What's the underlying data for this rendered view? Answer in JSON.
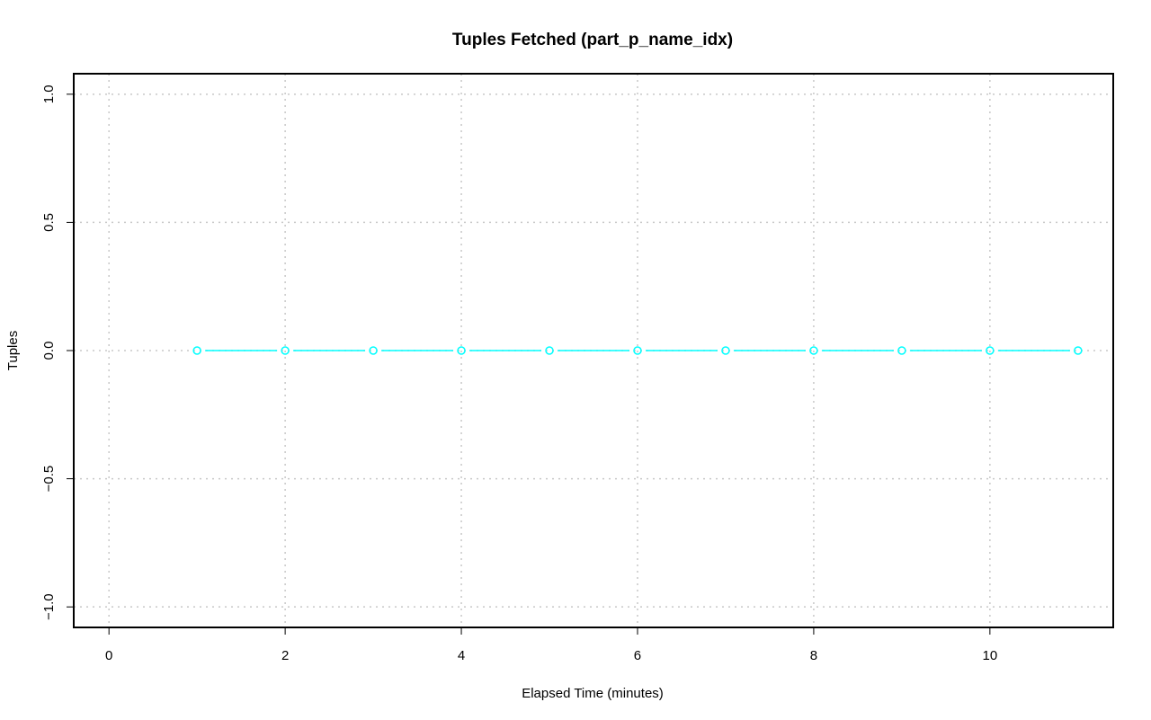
{
  "chart_data": {
    "type": "line",
    "title": "Tuples Fetched (part_p_name_idx)",
    "xlabel": "Elapsed Time (minutes)",
    "ylabel": "Tuples",
    "xlim": [
      -0.4,
      11.4
    ],
    "ylim": [
      -1.08,
      1.08
    ],
    "xticks": [
      0,
      2,
      4,
      6,
      8,
      10
    ],
    "xtick_labels": [
      "0",
      "2",
      "4",
      "6",
      "8",
      "10"
    ],
    "yticks": [
      -1.0,
      -0.5,
      0.0,
      0.5,
      1.0
    ],
    "ytick_labels": [
      "−1.0",
      "−0.5",
      "0.0",
      "0.5",
      "1.0"
    ],
    "grid": true,
    "series": [
      {
        "x": [
          1,
          2,
          3,
          4,
          5,
          6,
          7,
          8,
          9,
          10,
          11
        ],
        "y": [
          0,
          0,
          0,
          0,
          0,
          0,
          0,
          0,
          0,
          0,
          0
        ],
        "color": "#00ffff",
        "marker": "open-circle"
      }
    ]
  }
}
